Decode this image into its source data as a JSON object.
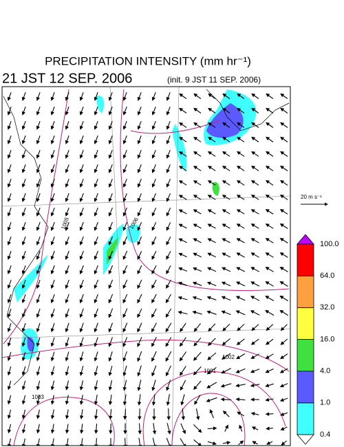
{
  "header": {
    "title": "PRECIPITATION INTENSITY (mm hr⁻¹)",
    "valid_time": "21 JST 12 SEP. 2006",
    "init_time": "(init. 9 JST 11 SEP. 2006)"
  },
  "wind_scale": {
    "label": "20 m s⁻¹"
  },
  "colorbar": {
    "levels": [
      "0.4",
      "1.0",
      "4.0",
      "16.0",
      "32.0",
      "64.0",
      "100.0"
    ],
    "colors": [
      "#ffffff",
      "#40ffff",
      "#5a5aff",
      "#40e040",
      "#ffff40",
      "#ffa040",
      "#ff0000",
      "#c000ff"
    ]
  },
  "isobars": {
    "labels": [
      "1005",
      "1006",
      "1002",
      "1001",
      "1003"
    ]
  }
}
